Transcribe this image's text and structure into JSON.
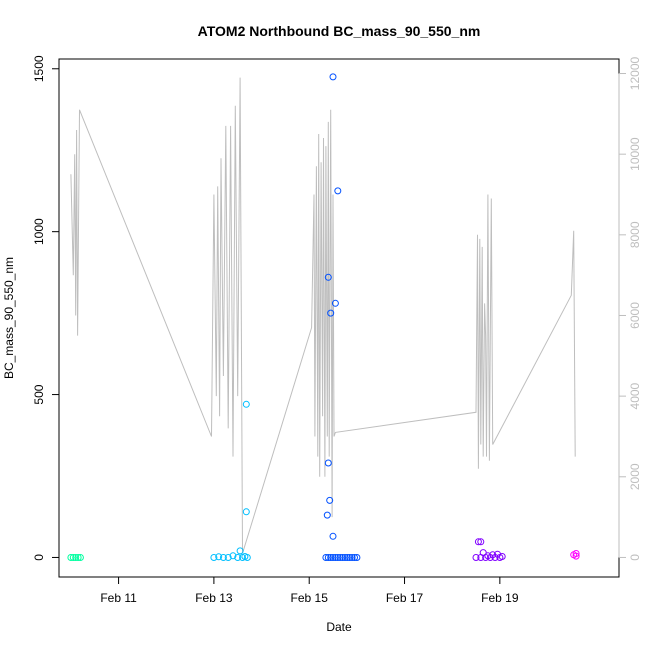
{
  "chart_data": {
    "type": "scatter",
    "title": "ATOM2 Northbound BC_mass_90_550_nm",
    "xlabel": "Date",
    "ylabel": "BC_mass_90_550_nm",
    "x_unit": "days since Feb 10",
    "xlim": [
      -0.25,
      11.5
    ],
    "ylim": [
      -60,
      1530
    ],
    "x_ticks": [
      {
        "value": 1,
        "label": "Feb 11"
      },
      {
        "value": 3,
        "label": "Feb 13"
      },
      {
        "value": 5,
        "label": "Feb 15"
      },
      {
        "value": 7,
        "label": "Feb 17"
      },
      {
        "value": 9,
        "label": "Feb 19"
      }
    ],
    "y_ticks": [
      0,
      500,
      1000,
      1500
    ],
    "y2_ticks": [
      0,
      2000,
      4000,
      6000,
      8000,
      10000,
      12000
    ],
    "y2lim": [
      -485,
      12360
    ],
    "grid": false,
    "points": [
      {
        "x": 0.0,
        "y": 0,
        "color": "#00ffa0"
      },
      {
        "x": 0.05,
        "y": 0,
        "color": "#00ffa0"
      },
      {
        "x": 0.1,
        "y": 0,
        "color": "#00ffa0"
      },
      {
        "x": 0.15,
        "y": 0,
        "color": "#00ffa0"
      },
      {
        "x": 0.2,
        "y": 0,
        "color": "#00ffa0"
      },
      {
        "x": 3.0,
        "y": 0,
        "color": "#00bfff"
      },
      {
        "x": 3.1,
        "y": 2,
        "color": "#00bfff"
      },
      {
        "x": 3.2,
        "y": 0,
        "color": "#00bfff"
      },
      {
        "x": 3.3,
        "y": 0,
        "color": "#00bfff"
      },
      {
        "x": 3.4,
        "y": 5,
        "color": "#00bfff"
      },
      {
        "x": 3.5,
        "y": 0,
        "color": "#00bfff"
      },
      {
        "x": 3.55,
        "y": 20,
        "color": "#00bfff"
      },
      {
        "x": 3.6,
        "y": 0,
        "color": "#00bfff"
      },
      {
        "x": 3.65,
        "y": 3,
        "color": "#00bfff"
      },
      {
        "x": 3.68,
        "y": 140,
        "color": "#00bfff"
      },
      {
        "x": 3.68,
        "y": 470,
        "color": "#00bfff"
      },
      {
        "x": 3.7,
        "y": 0,
        "color": "#00bfff"
      },
      {
        "x": 5.4,
        "y": 860,
        "color": "#0050ff"
      },
      {
        "x": 5.45,
        "y": 750,
        "color": "#0050ff"
      },
      {
        "x": 5.5,
        "y": 1475,
        "color": "#0050ff"
      },
      {
        "x": 5.55,
        "y": 780,
        "color": "#0050ff"
      },
      {
        "x": 5.6,
        "y": 1125,
        "color": "#0050ff"
      },
      {
        "x": 5.4,
        "y": 290,
        "color": "#0050ff"
      },
      {
        "x": 5.43,
        "y": 175,
        "color": "#0050ff"
      },
      {
        "x": 5.38,
        "y": 130,
        "color": "#0050ff"
      },
      {
        "x": 5.5,
        "y": 65,
        "color": "#0050ff"
      },
      {
        "x": 5.35,
        "y": 0,
        "color": "#0050ff"
      },
      {
        "x": 5.4,
        "y": 0,
        "color": "#0050ff"
      },
      {
        "x": 5.45,
        "y": 0,
        "color": "#0050ff"
      },
      {
        "x": 5.5,
        "y": 0,
        "color": "#0050ff"
      },
      {
        "x": 5.55,
        "y": 0,
        "color": "#0050ff"
      },
      {
        "x": 5.6,
        "y": 0,
        "color": "#0050ff"
      },
      {
        "x": 5.65,
        "y": 0,
        "color": "#0050ff"
      },
      {
        "x": 5.7,
        "y": 0,
        "color": "#0050ff"
      },
      {
        "x": 5.75,
        "y": 0,
        "color": "#0050ff"
      },
      {
        "x": 5.8,
        "y": 0,
        "color": "#0050ff"
      },
      {
        "x": 5.85,
        "y": 0,
        "color": "#0050ff"
      },
      {
        "x": 5.9,
        "y": 0,
        "color": "#0050ff"
      },
      {
        "x": 5.95,
        "y": 0,
        "color": "#0050ff"
      },
      {
        "x": 6.0,
        "y": 0,
        "color": "#0050ff"
      },
      {
        "x": 8.5,
        "y": 0,
        "color": "#8000ff"
      },
      {
        "x": 8.55,
        "y": 48,
        "color": "#8000ff"
      },
      {
        "x": 8.6,
        "y": 48,
        "color": "#8000ff"
      },
      {
        "x": 8.6,
        "y": 0,
        "color": "#8000ff"
      },
      {
        "x": 8.65,
        "y": 15,
        "color": "#8000ff"
      },
      {
        "x": 8.7,
        "y": 0,
        "color": "#8000ff"
      },
      {
        "x": 8.75,
        "y": 5,
        "color": "#8000ff"
      },
      {
        "x": 8.8,
        "y": 0,
        "color": "#8000ff"
      },
      {
        "x": 8.85,
        "y": 8,
        "color": "#8000ff"
      },
      {
        "x": 8.9,
        "y": 0,
        "color": "#8000ff"
      },
      {
        "x": 8.95,
        "y": 10,
        "color": "#8000ff"
      },
      {
        "x": 9.0,
        "y": 0,
        "color": "#8000ff"
      },
      {
        "x": 9.05,
        "y": 3,
        "color": "#8000ff"
      },
      {
        "x": 10.55,
        "y": 8,
        "color": "#ff00ff"
      },
      {
        "x": 10.6,
        "y": 12,
        "color": "#ff00ff"
      },
      {
        "x": 10.6,
        "y": 4,
        "color": "#ff00ff"
      }
    ],
    "line_series": {
      "color": "#bebebe",
      "axis": "secondary",
      "points": [
        [
          0.0,
          9500
        ],
        [
          0.05,
          7000
        ],
        [
          0.08,
          10000
        ],
        [
          0.1,
          6000
        ],
        [
          0.12,
          10600
        ],
        [
          0.14,
          5500
        ],
        [
          0.18,
          11100
        ],
        [
          2.95,
          3000
        ],
        [
          3.0,
          9000
        ],
        [
          3.05,
          4000
        ],
        [
          3.08,
          9200
        ],
        [
          3.12,
          3500
        ],
        [
          3.15,
          9900
        ],
        [
          3.2,
          4500
        ],
        [
          3.25,
          10700
        ],
        [
          3.3,
          3200
        ],
        [
          3.35,
          10700
        ],
        [
          3.4,
          2500
        ],
        [
          3.45,
          11200
        ],
        [
          3.5,
          4000
        ],
        [
          3.55,
          11900
        ],
        [
          3.6,
          100
        ],
        [
          5.05,
          5700
        ],
        [
          5.1,
          9000
        ],
        [
          5.12,
          3000
        ],
        [
          5.15,
          9700
        ],
        [
          5.18,
          2500
        ],
        [
          5.2,
          10500
        ],
        [
          5.22,
          2000
        ],
        [
          5.25,
          9800
        ],
        [
          5.28,
          3500
        ],
        [
          5.3,
          10400
        ],
        [
          5.33,
          2000
        ],
        [
          5.35,
          10200
        ],
        [
          5.38,
          3000
        ],
        [
          5.4,
          10800
        ],
        [
          5.42,
          2500
        ],
        [
          5.45,
          11100
        ],
        [
          5.48,
          1000
        ],
        [
          5.5,
          9000
        ],
        [
          5.52,
          3000
        ],
        [
          5.55,
          3100
        ],
        [
          8.5,
          3600
        ],
        [
          8.53,
          8000
        ],
        [
          8.55,
          2200
        ],
        [
          8.58,
          7900
        ],
        [
          8.6,
          2800
        ],
        [
          8.63,
          7700
        ],
        [
          8.65,
          2500
        ],
        [
          8.68,
          6300
        ],
        [
          8.7,
          5500
        ],
        [
          8.72,
          2500
        ],
        [
          8.75,
          9000
        ],
        [
          8.78,
          2400
        ],
        [
          8.82,
          8900
        ],
        [
          8.85,
          2800
        ],
        [
          10.5,
          6500
        ],
        [
          10.55,
          8100
        ],
        [
          10.58,
          2500
        ]
      ]
    }
  }
}
